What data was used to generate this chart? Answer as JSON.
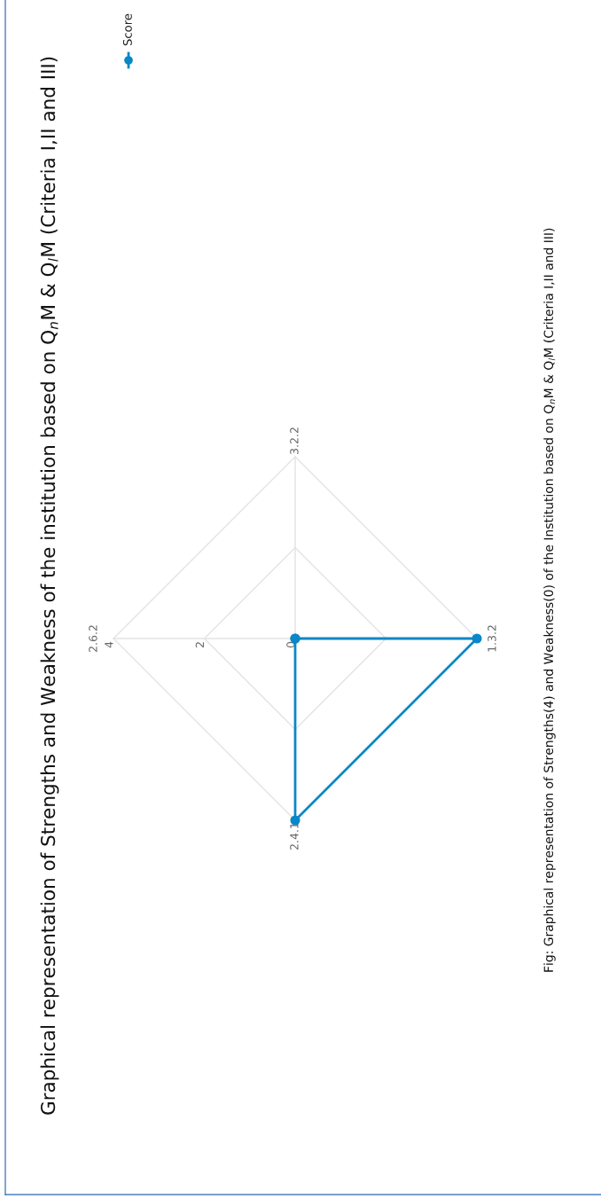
{
  "chart_data": {
    "type": "radar",
    "title": "Graphical representation of Strengths and Weakness of the institution based on Q$_{n}$M & Q$_{l}$M (Criteria I,II and III)",
    "annotations": [
      "Fig: Graphical representation of Strengths(4) and Weakness(0) of the Institution based on Q$_{n}$M & Q$_{l}$M (Criteria I,II and III)"
    ],
    "categories": [
      "2.6.2",
      "3.2.2",
      "1.3.2",
      "2.4.1"
    ],
    "series": [
      {
        "name": "Score",
        "color": "#0a87c8",
        "values": [
          0,
          0,
          4,
          4
        ]
      }
    ],
    "ylim": [
      0,
      4
    ],
    "yticks": [
      0,
      2,
      4
    ],
    "grid": true,
    "legend": "top left",
    "marker": "circle",
    "line_style": "solid"
  }
}
